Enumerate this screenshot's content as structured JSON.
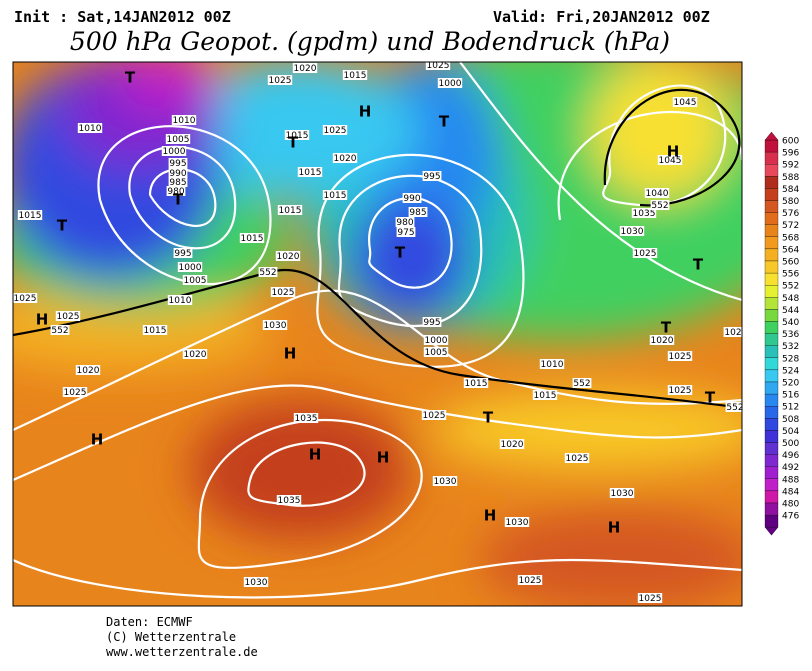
{
  "header": {
    "init": "Init : Sat,14JAN2012 00Z",
    "valid": "Valid: Fri,20JAN2012 00Z",
    "title": "500 hPa Geopot. (gpdm) und Bodendruck (hPa)"
  },
  "map": {
    "isobar_labels": [
      "1010",
      "1015",
      "1025",
      "1025",
      "1015",
      "1020",
      "1025",
      "1020",
      "1030",
      "1025",
      "1020",
      "1015",
      "1015",
      "1015",
      "1015",
      "1020",
      "1025",
      "1015",
      "1025",
      "1020",
      "1015",
      "1025",
      "1000",
      "995",
      "990",
      "985",
      "980",
      "975",
      "995",
      "1000",
      "1005",
      "1010",
      "1015",
      "1015",
      "1025",
      "1020",
      "1025",
      "1030",
      "1030",
      "1030",
      "1025",
      "1025",
      "1030",
      "1035",
      "1035",
      "1010",
      "1005",
      "1000",
      "995",
      "1010",
      "1005",
      "1000",
      "995",
      "990",
      "985",
      "980",
      "1020",
      "1025",
      "1025",
      "1030",
      "1035",
      "1040",
      "1045",
      "1045",
      "1025",
      "102",
      "552",
      "552",
      "552",
      "552",
      "552"
    ],
    "pressure_centers": [
      "T",
      "T",
      "T",
      "T",
      "H",
      "T",
      "T",
      "H",
      "H",
      "H",
      "T",
      "T",
      "T",
      "T",
      "H",
      "H",
      "H",
      "H",
      "H"
    ]
  },
  "colorbar": {
    "levels": [
      600,
      596,
      592,
      588,
      584,
      580,
      576,
      572,
      568,
      564,
      560,
      556,
      552,
      548,
      544,
      540,
      536,
      532,
      528,
      524,
      520,
      516,
      512,
      508,
      504,
      500,
      496,
      492,
      488,
      484,
      480,
      476
    ],
    "colors": [
      "#c0103c",
      "#d8304c",
      "#e8485c",
      "#b02c1c",
      "#c4401c",
      "#d45620",
      "#e06c1c",
      "#e8841c",
      "#f09a1e",
      "#f4b020",
      "#f8c828",
      "#f8e030",
      "#e4f030",
      "#b4e438",
      "#78d840",
      "#40d060",
      "#30c890",
      "#28c0b8",
      "#30d8d8",
      "#38c8f0",
      "#30a8f0",
      "#2888f0",
      "#2868e8",
      "#3048e0",
      "#4030d8",
      "#6030d0",
      "#8028d0",
      "#a020d0",
      "#c020c8",
      "#d018a8",
      "#9010a0",
      "#600080"
    ]
  },
  "footer": [
    "Daten: ECMWF",
    "(C) Wetterzentrale",
    "www.wetterzentrale.de"
  ]
}
